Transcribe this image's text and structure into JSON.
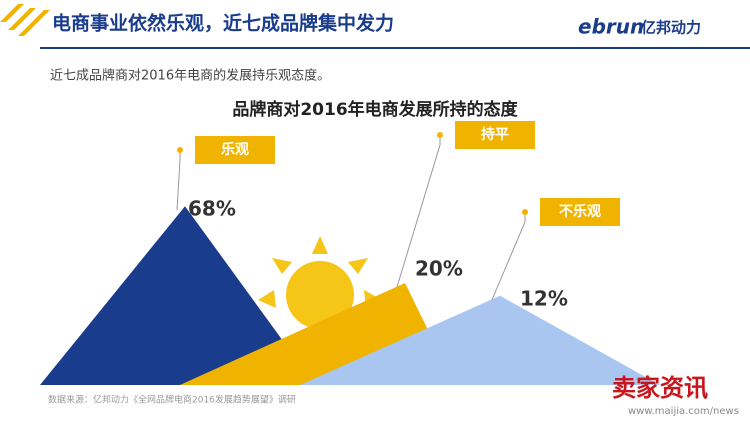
{
  "header": {
    "title": "电商事业依然乐观，近七成品牌集中发力",
    "logo": "ebrun",
    "logo_cn": "亿邦动力",
    "subtitle": "近七成品牌商对2016年电商的发展持乐观态度。"
  },
  "chart_data": {
    "type": "mountain",
    "title": "品牌商对2016年电商发展所持的态度",
    "categories": [
      "乐观",
      "持平",
      "不乐观"
    ],
    "values": [
      68,
      20,
      12
    ],
    "value_labels": [
      "68%",
      "20%",
      "12%"
    ],
    "colors": [
      "#1a3c8c",
      "#f0b400",
      "#a8c6f0"
    ],
    "label_color": "#f0b400"
  },
  "footer": {
    "source": "数据来源：亿邦动力《全网品牌电商2016发展趋势展望》调研",
    "watermark": "卖家资讯",
    "watermark_url": "www.maijia.com/news"
  }
}
